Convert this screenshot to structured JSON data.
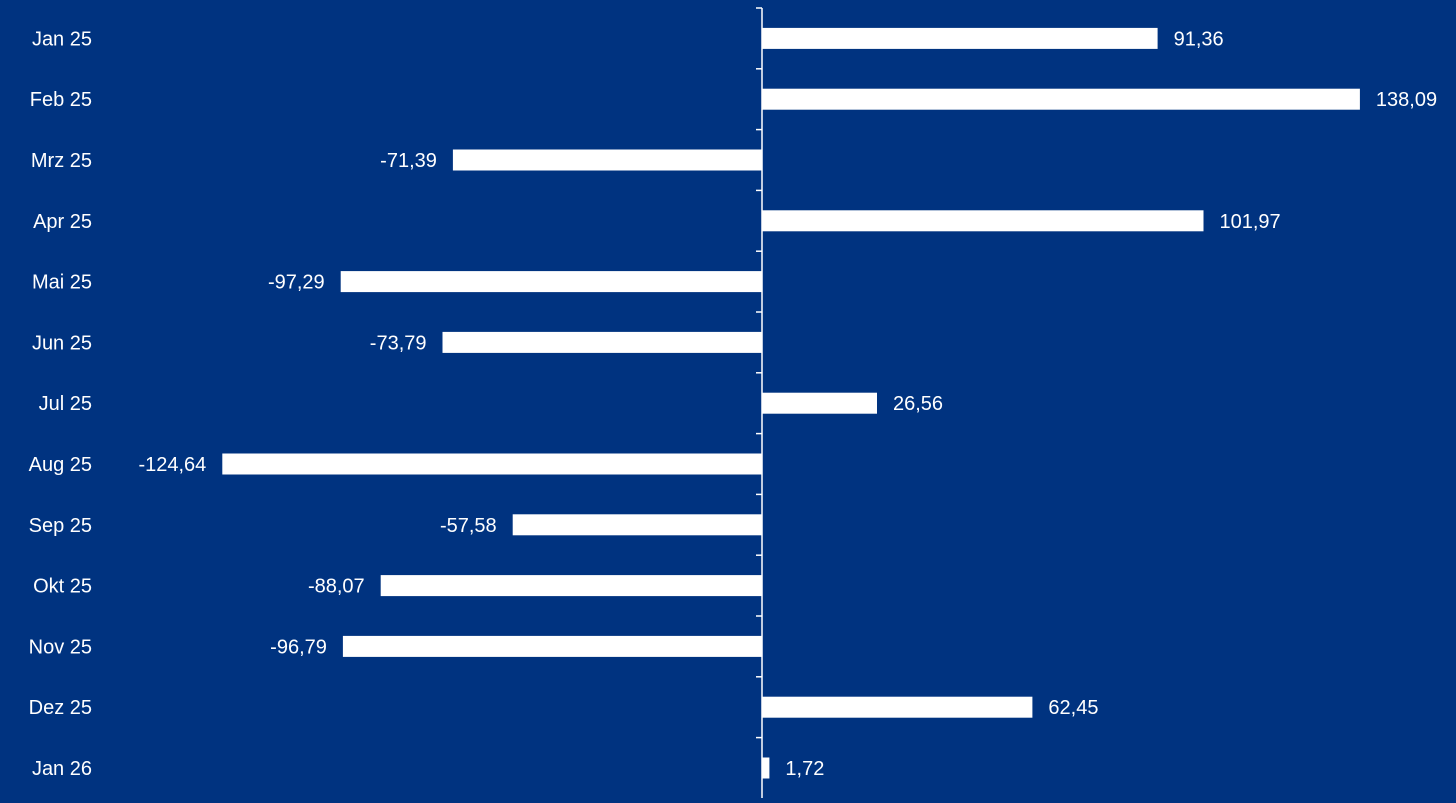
{
  "colors": {
    "background": "#003380",
    "bar": "#ffffff",
    "axis": "#ffffff",
    "text": "#ffffff"
  },
  "chart_data": {
    "type": "bar",
    "orientation": "horizontal",
    "categories": [
      "Jan 25",
      "Feb 25",
      "Mrz 25",
      "Apr 25",
      "Mai 25",
      "Jun 25",
      "Jul 25",
      "Aug 25",
      "Sep 25",
      "Okt 25",
      "Nov 25",
      "Dez 25",
      "Jan 26"
    ],
    "values": [
      91.36,
      138.09,
      -71.39,
      101.97,
      -97.29,
      -73.79,
      26.56,
      -124.64,
      -57.58,
      -88.07,
      -96.79,
      62.45,
      1.72
    ],
    "value_labels": [
      "91,36",
      "138,09",
      "-71,39",
      "101,97",
      "-97,29",
      "-73,79",
      "26,56",
      "-124,64",
      "-57,58",
      "-88,07",
      "-96,79",
      "62,45",
      "1,72"
    ],
    "grid": false,
    "legend": "none"
  }
}
